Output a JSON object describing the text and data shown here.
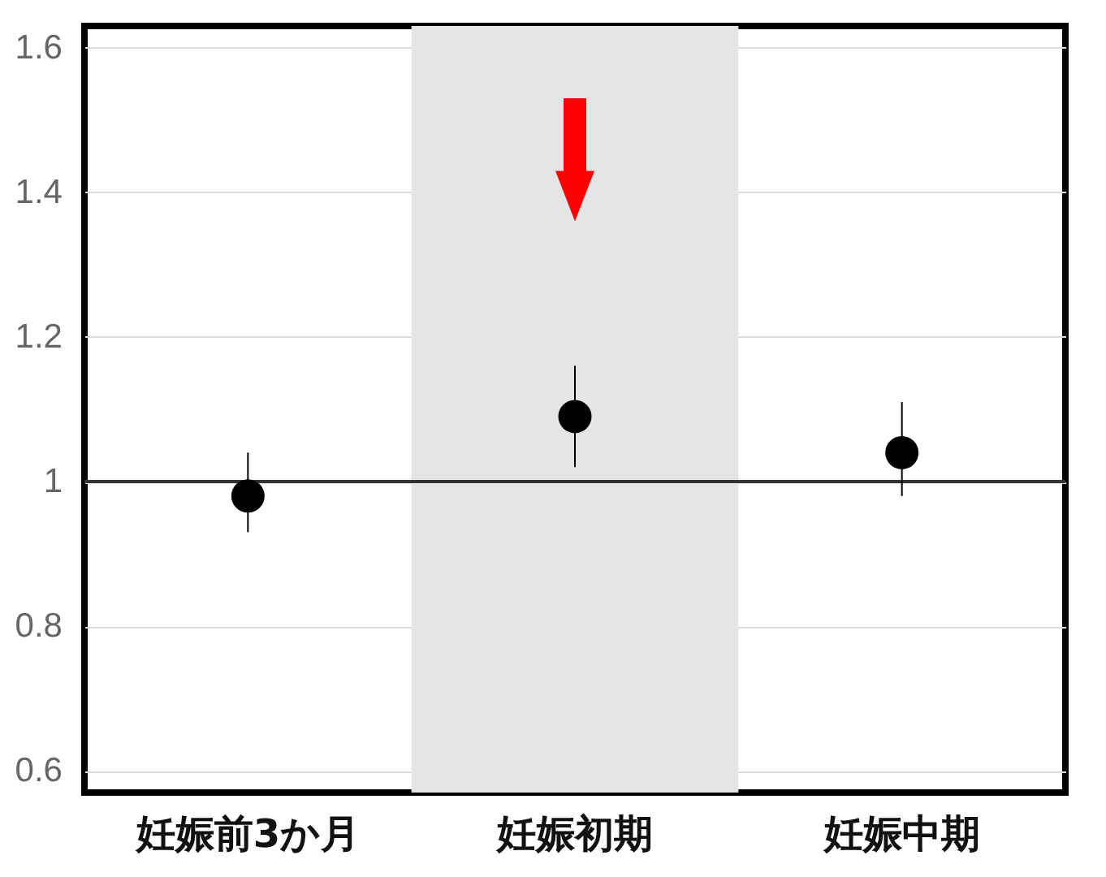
{
  "chart_data": {
    "type": "scatter",
    "categories": [
      "妊娠前3か月",
      "妊娠初期",
      "妊娠中期"
    ],
    "series": [
      {
        "color": "#000000",
        "values": [
          0.98,
          1.09,
          1.04
        ],
        "errors": [
          [
            0.93,
            1.04
          ],
          [
            1.02,
            1.16
          ],
          [
            0.98,
            1.11
          ]
        ]
      }
    ],
    "ylim": [
      0.57,
      1.63
    ],
    "yticks": [
      0.6,
      0.8,
      1,
      1.2,
      1.4,
      1.6
    ],
    "ref_lines": [
      {
        "axis": "y",
        "value": 1,
        "color": "#333333"
      }
    ],
    "bands": [
      {
        "axis": "x",
        "from": "妊娠初期",
        "to": "妊娠初期",
        "color": "#e6e5e6"
      }
    ],
    "grid": "y",
    "marker": "circle"
  }
}
